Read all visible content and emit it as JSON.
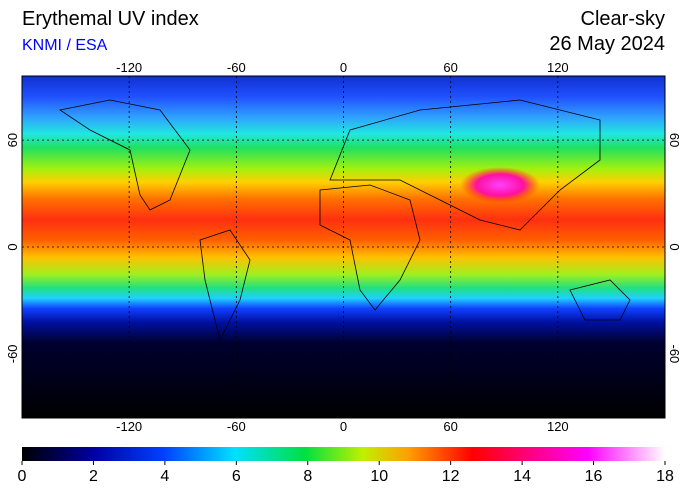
{
  "header": {
    "title": "Erythemal UV index",
    "source": "KNMI / ESA",
    "condition": "Clear-sky",
    "date": "26 May 2024"
  },
  "map": {
    "lonlim": [
      -180,
      180
    ],
    "latlim": [
      -96,
      96
    ],
    "lon_ticks": [
      -120,
      -60,
      0,
      60,
      120
    ],
    "lat_ticks": [
      60,
      0,
      -60
    ]
  },
  "colorbar": {
    "lim": [
      0,
      18
    ],
    "ticks": [
      0,
      2,
      4,
      6,
      8,
      10,
      12,
      14,
      16,
      18
    ]
  }
}
